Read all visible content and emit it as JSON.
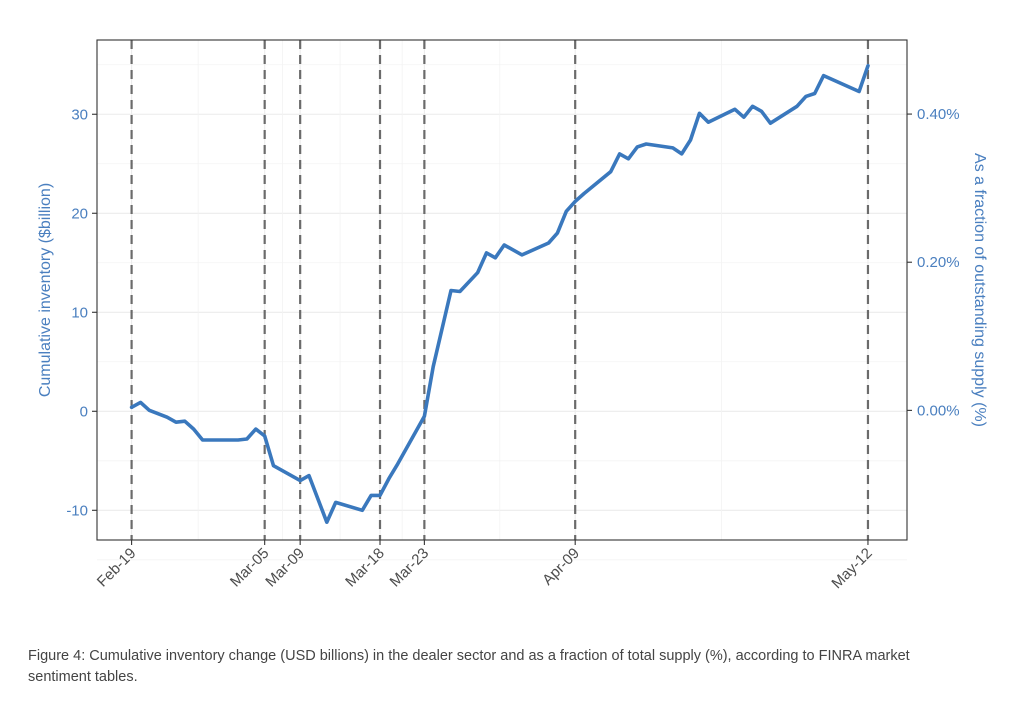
{
  "chart_data": {
    "type": "line",
    "ylabel": "Cumulative inventory ($billion)",
    "y2label": "As a fraction of outstanding supply (%)",
    "ylim": [
      -13,
      37.5
    ],
    "y2lim": [
      -0.175,
      0.5
    ],
    "yticks": [
      -10,
      0,
      10,
      20,
      30
    ],
    "y2ticks": [
      0.0,
      0.2,
      0.4
    ],
    "y2tick_labels": [
      "0.00%",
      "0.20%",
      "0.40%"
    ],
    "grid": true,
    "vlines_dashed": [
      "Feb-19",
      "Mar-05",
      "Mar-09",
      "Mar-18",
      "Mar-23",
      "Apr-09",
      "May-12"
    ],
    "xticks": [
      {
        "label": "Feb-19",
        "day": 0
      },
      {
        "label": "Mar-05",
        "day": 15
      },
      {
        "label": "Mar-09",
        "day": 19
      },
      {
        "label": "Mar-18",
        "day": 28
      },
      {
        "label": "Mar-23",
        "day": 33
      },
      {
        "label": "Apr-09",
        "day": 50
      },
      {
        "label": "May-12",
        "day": 83
      }
    ],
    "series": [
      {
        "color": "#3a78bd",
        "x": [
          0,
          1,
          2,
          4,
          5,
          6,
          7,
          8,
          9,
          12,
          13,
          14,
          15,
          16,
          19,
          20,
          22,
          23,
          26,
          27,
          28,
          29,
          30,
          33,
          34,
          36,
          37,
          39,
          40,
          41,
          42,
          44,
          47,
          48,
          49,
          50,
          51,
          54,
          55,
          56,
          57,
          58,
          61,
          62,
          63,
          64,
          65,
          68,
          69,
          70,
          71,
          72,
          75,
          76,
          77,
          78,
          82,
          83
        ],
        "y": [
          0.4,
          0.9,
          0.1,
          -0.6,
          -1.1,
          -1.0,
          -1.8,
          -2.9,
          -2.9,
          -2.9,
          -2.8,
          -1.8,
          -2.5,
          -5.5,
          -7.0,
          -6.5,
          -11.2,
          -9.2,
          -10.0,
          -8.5,
          -8.5,
          -6.8,
          -5.3,
          -0.5,
          4.5,
          12.2,
          12.1,
          14.0,
          16.0,
          15.5,
          16.8,
          15.8,
          17.0,
          18.0,
          20.2,
          21.2,
          22.0,
          24.2,
          26.0,
          25.5,
          26.7,
          27.0,
          26.6,
          26.0,
          27.4,
          30.1,
          29.2,
          30.5,
          29.7,
          30.8,
          30.3,
          29.1,
          30.8,
          31.8,
          32.1,
          33.9,
          32.3,
          34.9
        ]
      }
    ]
  },
  "caption": "Figure 4: Cumulative inventory change (USD billions) in the dealer sector and as a fraction of total supply (%), according to FINRA market sentiment tables.",
  "colors": {
    "line": "#3a78bd",
    "axis_text": "#4a7fbf",
    "tick_text_x": "#4d4d4d",
    "grid": "#ebebeb",
    "vline": "#6b6b6b",
    "caption": "#444444"
  }
}
